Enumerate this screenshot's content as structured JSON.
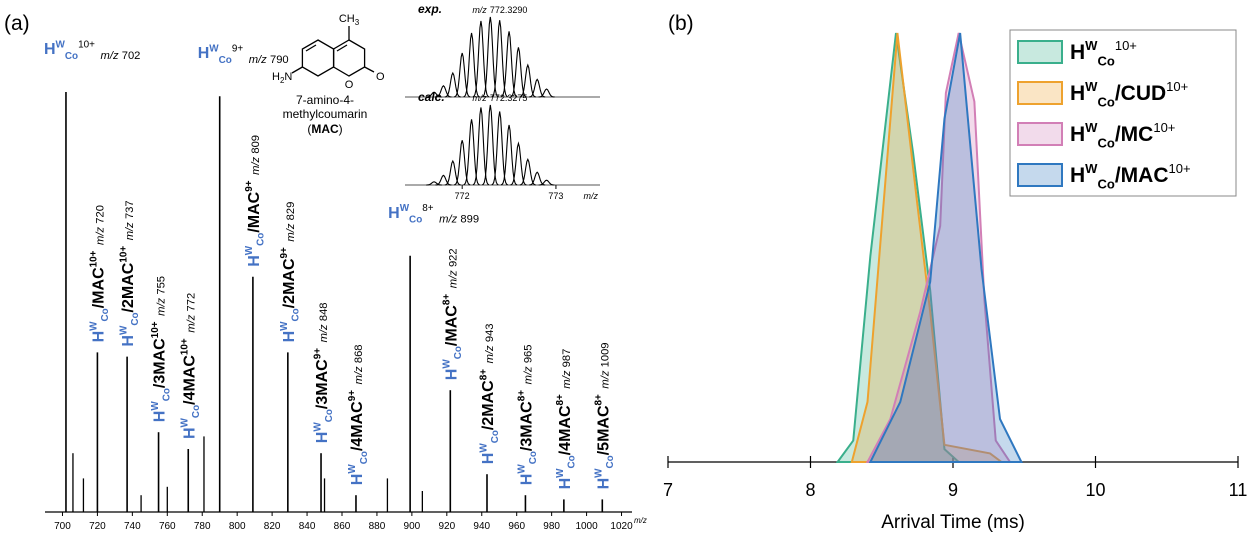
{
  "chart_data": [
    {
      "type": "stem",
      "panel_label": "(a)",
      "ion": {
        "base": "H",
        "sup": "W",
        "sub": "Co"
      },
      "x_unit": "m/z",
      "color": "#000000",
      "ion_color": "#4472c4",
      "x": [
        702,
        720,
        737,
        755,
        772,
        790,
        809,
        829,
        848,
        868,
        899,
        922,
        943,
        965,
        987,
        1009
      ],
      "values": [
        100,
        38,
        37,
        19,
        15,
        99,
        56,
        38,
        14,
        4,
        61,
        29,
        9,
        4,
        3,
        3
      ],
      "labels": [
        {
          "charge": "10+"
        },
        {
          "species": "/MAC",
          "charge": "10+"
        },
        {
          "species": "/2MAC",
          "charge": "10+"
        },
        {
          "species": "/3MAC",
          "charge": "10+"
        },
        {
          "species": "/4MAC",
          "charge": "10+"
        },
        {
          "charge": "9+"
        },
        {
          "species": "/MAC",
          "charge": "9+"
        },
        {
          "species": "/2MAC",
          "charge": "9+"
        },
        {
          "species": "/3MAC",
          "charge": "9+"
        },
        {
          "species": "/4MAC",
          "charge": "9+"
        },
        {
          "charge": "8+"
        },
        {
          "species": "/MAC",
          "charge": "8+"
        },
        {
          "species": "/2MAC",
          "charge": "8+"
        },
        {
          "species": "/3MAC",
          "charge": "8+"
        },
        {
          "species": "/4MAC",
          "charge": "8+"
        },
        {
          "species": "/5MAC",
          "charge": "8+"
        }
      ],
      "minor": {
        "x": [
          706,
          712,
          745,
          760,
          781,
          850,
          886,
          906
        ],
        "values": [
          14,
          8,
          4,
          6,
          18,
          8,
          8,
          5
        ]
      },
      "xlim": [
        690,
        1026
      ],
      "ylim": [
        0,
        100
      ],
      "xticks": [
        700,
        720,
        740,
        760,
        780,
        800,
        820,
        840,
        860,
        880,
        900,
        920,
        940,
        960,
        980,
        1000,
        1020
      ],
      "structure": {
        "methyl": "CH",
        "methyl_sub": "3",
        "amine_h": "H",
        "amine_sub": "2",
        "amine_n": "N",
        "oxygen": "O",
        "name": [
          "7-amino-4-",
          "methylcoumarin"
        ],
        "abbr_open": "(",
        "abbr": "MAC",
        "abbr_close": ")"
      },
      "isotope": {
        "x": [
          771.7,
          771.8,
          771.9,
          772.0,
          772.1,
          772.2,
          772.3,
          772.4,
          772.5,
          772.6,
          772.7,
          772.8,
          772.9
        ],
        "xlim": [
          771.39,
          773.47
        ],
        "xticks": [
          772,
          773
        ],
        "series": [
          {
            "name": "exp.",
            "peak_label": "772.3290",
            "values": [
              6,
              14,
              30,
              55,
              80,
              95,
              100,
              96,
              82,
              62,
              40,
              22,
              10
            ]
          },
          {
            "name": "calc.",
            "peak_label": "772.3275",
            "values": [
              4,
              12,
              30,
              56,
              82,
              97,
              100,
              92,
              75,
              52,
              32,
              16,
              6
            ]
          }
        ]
      }
    },
    {
      "type": "area",
      "panel_label": "(b)",
      "ion": {
        "base": "H",
        "sup": "W",
        "sub": "Co"
      },
      "ion_color": "#000000",
      "x_label": "Arrival Time (ms)",
      "xlim": [
        7,
        11
      ],
      "ylim": [
        0,
        100
      ],
      "xticks": [
        7,
        8,
        9,
        10,
        11
      ],
      "series": [
        {
          "charge": "10+",
          "color": "#3aaf8c",
          "x": [
            8.19,
            8.3,
            8.42,
            8.6,
            8.72,
            8.84,
            8.94,
            9.04
          ],
          "values": [
            0,
            5,
            48,
            100,
            72,
            40,
            3,
            0
          ]
        },
        {
          "species": "/CUD",
          "charge": "10+",
          "color": "#eea22e",
          "x": [
            8.29,
            8.4,
            8.5,
            8.61,
            8.75,
            8.84,
            8.94,
            9.26,
            9.34
          ],
          "values": [
            0,
            14,
            55,
            100,
            60,
            35,
            4,
            2,
            0
          ]
        },
        {
          "species": "/MC",
          "charge": "10+",
          "color": "#d27fb6",
          "x": [
            8.4,
            8.56,
            8.77,
            8.91,
            8.95,
            9.04,
            9.15,
            9.22,
            9.3,
            9.4
          ],
          "values": [
            0,
            10,
            35,
            55,
            86,
            100,
            84,
            38,
            5,
            0
          ]
        },
        {
          "species": "/MAC",
          "charge": "10+",
          "color": "#2f78c0",
          "x": [
            8.42,
            8.63,
            8.84,
            8.94,
            9.05,
            9.2,
            9.33,
            9.48
          ],
          "values": [
            0,
            14,
            42,
            80,
            100,
            45,
            10,
            0
          ]
        }
      ]
    }
  ]
}
